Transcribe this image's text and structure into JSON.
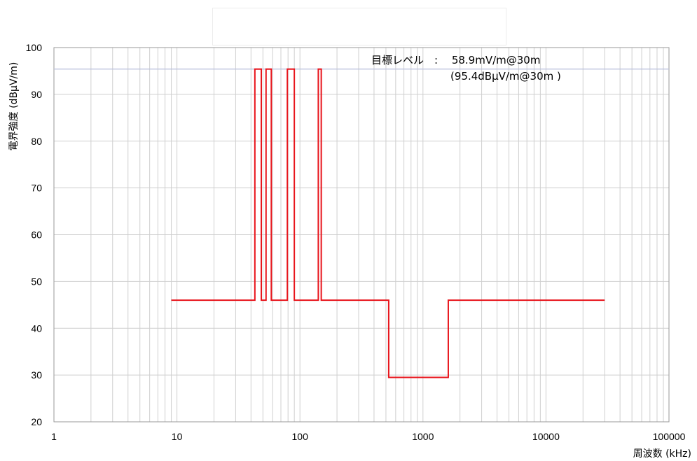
{
  "chart_data": {
    "type": "line",
    "title": "",
    "xlabel": "周波数 (kHz)",
    "ylabel": "電界強度 (dBμV/m)",
    "x_scale": "log",
    "xlim": [
      1,
      100000
    ],
    "ylim": [
      20,
      100
    ],
    "x_ticks": [
      1,
      10,
      100,
      1000,
      10000,
      100000
    ],
    "x_tick_labels": [
      "1",
      "10",
      "100",
      "1000",
      "10000",
      "100000"
    ],
    "y_ticks": [
      20,
      30,
      40,
      50,
      60,
      70,
      80,
      90,
      100
    ],
    "y_tick_labels": [
      "20",
      "30",
      "40",
      "50",
      "60",
      "70",
      "80",
      "90",
      "100"
    ],
    "grid": true,
    "target_level": 95.4,
    "annotation": {
      "line1": "目標レベル　:　 58.9mV/m@30m",
      "line2": "(95.4dBμV/m@30m )"
    },
    "series": [
      {
        "color": "#e8141b",
        "x": [
          9,
          43,
          43,
          48.5,
          48.5,
          53,
          53,
          58.5,
          58.5,
          79,
          79,
          90,
          90,
          141,
          141,
          149,
          149,
          526.5,
          526.5,
          1606.5,
          1606.5,
          30000
        ],
        "y": [
          46,
          46,
          95.4,
          95.4,
          46,
          46,
          95.4,
          95.4,
          46,
          46,
          95.4,
          95.4,
          46,
          46,
          95.4,
          95.4,
          46,
          46,
          29.5,
          29.5,
          46,
          46
        ]
      }
    ],
    "target_line_color": "#b9bfdc",
    "grid_color": "#cfcfcf"
  }
}
